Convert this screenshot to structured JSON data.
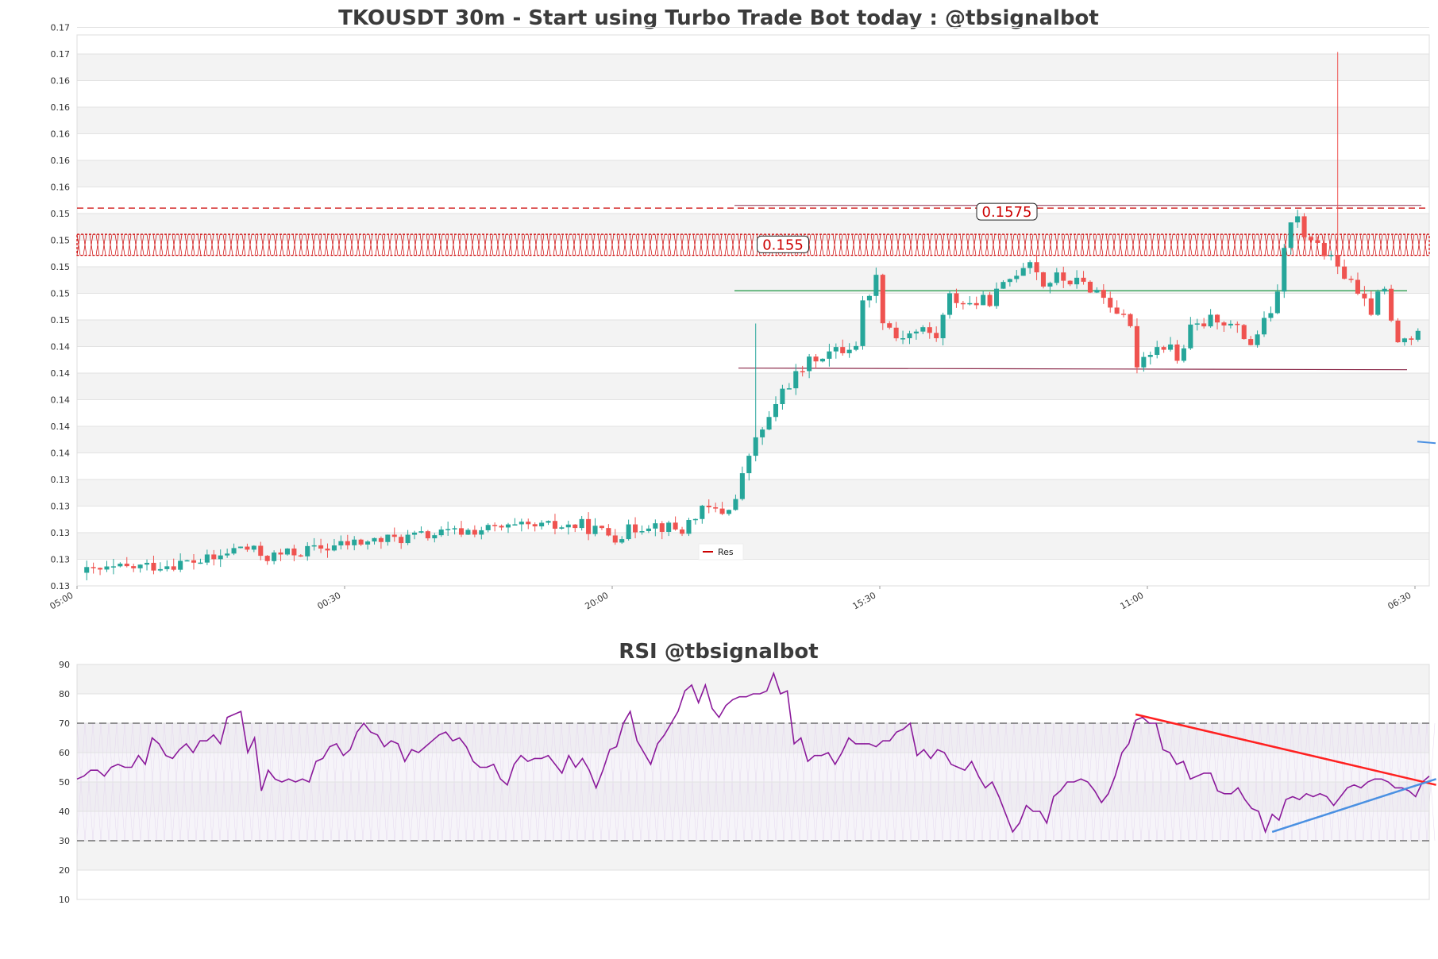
{
  "chart_data": [
    {
      "type": "candlestick",
      "title": "TKOUSDT 30m - Start using Turbo Trade Bot today : @tbsignalbot",
      "y_tick_labels": [
        "0.13",
        "0.13",
        "0.13",
        "0.13",
        "0.13",
        "0.14",
        "0.14",
        "0.14",
        "0.14",
        "0.14",
        "0.15",
        "0.15",
        "0.15",
        "0.15",
        "0.15",
        "0.16",
        "0.16",
        "0.16",
        "0.16",
        "0.16",
        "0.17",
        "0.17"
      ],
      "ylim": [
        0.129,
        0.171
      ],
      "x_tick_labels": [
        "05:00",
        "00:30",
        "20:00",
        "15:30",
        "11:00",
        "06:30"
      ],
      "grid": "horizontal bands",
      "legend": {
        "position": "bottom-center",
        "entries": [
          "Res"
        ]
      },
      "annotations": [
        {
          "text": "0.155",
          "value": 0.155,
          "color": "#cc0000"
        },
        {
          "text": "0.1575",
          "value": 0.1575,
          "color": "#cc0000"
        }
      ],
      "lines": {
        "resistance_dashed": 0.1578,
        "resistance_band": [
          0.1542,
          0.1558
        ],
        "res_segment": 0.158,
        "green_segment": 0.1515,
        "maroon_segment": 0.1456,
        "blue_marker": 0.14
      },
      "colors": {
        "up": "#26a69a",
        "down": "#ef5350",
        "resistance": "#cc0000",
        "support": "#1a9641",
        "maroon": "#8b2a4a",
        "blue": "#4a90e2"
      },
      "candles": []
    },
    {
      "type": "line",
      "title": "RSI @tbsignalbot",
      "y_tick_labels": [
        "10",
        "20",
        "30",
        "40",
        "50",
        "60",
        "70",
        "80",
        "90"
      ],
      "ylim": [
        10,
        90
      ],
      "levels": [
        30,
        70
      ],
      "values": [
        51,
        52,
        54,
        54,
        52,
        55,
        56,
        55,
        55,
        59,
        56,
        65,
        63,
        59,
        58,
        61,
        63,
        60,
        64,
        64,
        66,
        63,
        72,
        73,
        74,
        60,
        65,
        47,
        54,
        51,
        50,
        51,
        50,
        51,
        50,
        57,
        58,
        62,
        63,
        59,
        61,
        67,
        70,
        67,
        66,
        62,
        64,
        63,
        57,
        61,
        60,
        62,
        64,
        66,
        67,
        64,
        65,
        62,
        57,
        55,
        55,
        56,
        51,
        49,
        56,
        59,
        57,
        58,
        58,
        59,
        56,
        53,
        59,
        55,
        58,
        54,
        48,
        54,
        61,
        62,
        70,
        74,
        64,
        60,
        56,
        63,
        66,
        70,
        74,
        81,
        83,
        77,
        83,
        75,
        72,
        76,
        78,
        79,
        79,
        80,
        80,
        81,
        87,
        80,
        81,
        63,
        65,
        57,
        59,
        59,
        60,
        56,
        60,
        65,
        63,
        63,
        63,
        62,
        64,
        64,
        67,
        68,
        70,
        59,
        61,
        58,
        61,
        60,
        56,
        55,
        54,
        57,
        52,
        48,
        50,
        45,
        39,
        33,
        36,
        42,
        40,
        40,
        36,
        45,
        47,
        50,
        50,
        51,
        50,
        47,
        43,
        46,
        52,
        60,
        63,
        71,
        72,
        70,
        70,
        61,
        60,
        56,
        57,
        51,
        52,
        53,
        53,
        47,
        46,
        46,
        48,
        44,
        41,
        40,
        33,
        39,
        37,
        44,
        45,
        44,
        46,
        45,
        46,
        45,
        42,
        45,
        48,
        49,
        48,
        50,
        51,
        51,
        50,
        48,
        48,
        47,
        45,
        50,
        52
      ],
      "trendlines": [
        {
          "color": "#ff2020",
          "from": [
            155,
            73
          ],
          "to": [
            199,
            49
          ]
        },
        {
          "color": "#4a90e2",
          "from": [
            175,
            33
          ],
          "to": [
            199,
            51
          ]
        }
      ],
      "colors": {
        "line": "#8b1a9b",
        "levels": "#555555"
      }
    }
  ]
}
